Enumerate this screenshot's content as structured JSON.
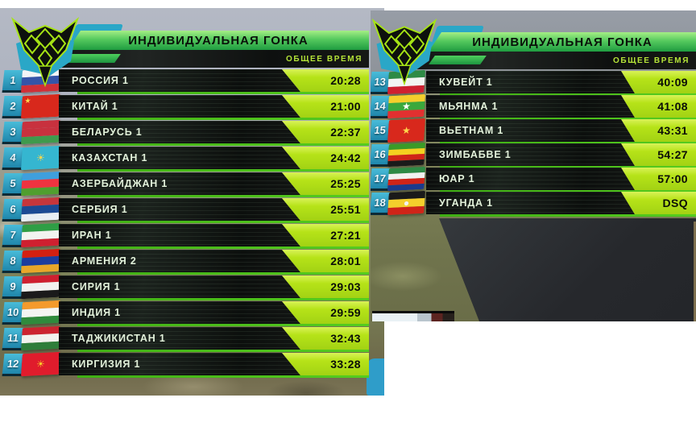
{
  "event": {
    "title": "ИНДИВИДУАЛЬНАЯ ГОНКА",
    "column_header": "ОБЩЕЕ ВРЕМЯ"
  },
  "colors": {
    "header_green_top": "#a5ee85",
    "header_green_bottom": "#1f9c40",
    "time_box_green": "#b6e318",
    "underline_green": "#55cc1f",
    "rank_badge_blue": "#2f9fc4",
    "column_header_text": "#b5e438",
    "logo_teal": "#2aa7c7",
    "logo_outline_green": "#a6e415"
  },
  "panels": [
    {
      "title": "ИНДИВИДУАЛЬНАЯ ГОНКА",
      "column_header": "ОБЩЕЕ ВРЕМЯ",
      "rows": [
        {
          "rank": "1",
          "team": "РОССИЯ 1",
          "time": "20:28",
          "flag": "russia",
          "flag_colors": [
            "#f2f4f6",
            "#3454a8",
            "#cf3038"
          ]
        },
        {
          "rank": "2",
          "team": "КИТАЙ 1",
          "time": "21:00",
          "flag": "china",
          "flag_colors": [
            "#d8281c"
          ],
          "emblem": "★",
          "emblem_color": "#ffd84d",
          "emblem_pos": "tl"
        },
        {
          "rank": "3",
          "team": "БЕЛАРУСЬ 1",
          "time": "22:37",
          "flag": "belarus",
          "flag_colors": [
            "#c8313e",
            "#c8313e",
            "#3f9a4d"
          ]
        },
        {
          "rank": "4",
          "team": "КАЗАХСТАН 1",
          "time": "24:42",
          "flag": "kazakhstan",
          "flag_colors": [
            "#35b6d0"
          ],
          "emblem": "☀",
          "emblem_color": "#ffd84d",
          "emblem_pos": "center"
        },
        {
          "rank": "5",
          "team": "АЗЕРБАЙДЖАН 1",
          "time": "25:25",
          "flag": "azerbaijan",
          "flag_colors": [
            "#3f9fdd",
            "#ef3340",
            "#509e2f"
          ]
        },
        {
          "rank": "6",
          "team": "СЕРБИЯ 1",
          "time": "25:51",
          "flag": "serbia",
          "flag_colors": [
            "#c6363c",
            "#1b4a94",
            "#e8eef4"
          ]
        },
        {
          "rank": "7",
          "team": "ИРАН 1",
          "time": "27:21",
          "flag": "iran",
          "flag_colors": [
            "#2f9e45",
            "#f2f4f0",
            "#cf2030"
          ]
        },
        {
          "rank": "8",
          "team": "АРМЕНИЯ 2",
          "time": "28:01",
          "flag": "armenia",
          "flag_colors": [
            "#d32011",
            "#1c3d9e",
            "#e8a62a"
          ]
        },
        {
          "rank": "9",
          "team": "СИРИЯ 1",
          "time": "29:03",
          "flag": "syria",
          "flag_colors": [
            "#cf2030",
            "#f2f2f0",
            "#1a1a1a"
          ]
        },
        {
          "rank": "10",
          "team": "ИНДИЯ 1",
          "time": "29:59",
          "flag": "india",
          "flag_colors": [
            "#f49a2c",
            "#f4f4f2",
            "#2f8a3c"
          ]
        },
        {
          "rank": "11",
          "team": "ТАДЖИКИСТАН 1",
          "time": "32:43",
          "flag": "tajikistan",
          "flag_colors": [
            "#cc2430",
            "#f2f2ee",
            "#2e7d3a"
          ]
        },
        {
          "rank": "12",
          "team": "КИРГИЗИЯ 1",
          "time": "33:28",
          "flag": "kyrgyzstan",
          "flag_colors": [
            "#e01c2c"
          ],
          "emblem": "☀",
          "emblem_color": "#f8c828",
          "emblem_pos": "center"
        }
      ]
    },
    {
      "title": "ИНДИВИДУАЛЬНАЯ ГОНКА",
      "column_header": "ОБЩЕЕ ВРЕМЯ",
      "rows": [
        {
          "rank": "13",
          "team": "КУВЕЙТ 1",
          "time": "40:09",
          "flag": "kuwait",
          "flag_colors": [
            "#2e8a45",
            "#f2f4f2",
            "#cf2030"
          ]
        },
        {
          "rank": "14",
          "team": "МЬЯНМА 1",
          "time": "41:08",
          "flag": "myanmar",
          "flag_colors": [
            "#f4cf2c",
            "#3aa83c",
            "#e23030"
          ],
          "emblem": "★",
          "emblem_color": "#ffffff",
          "emblem_pos": "center"
        },
        {
          "rank": "15",
          "team": "ВЬЕТНАМ 1",
          "time": "43:31",
          "flag": "vietnam",
          "flag_colors": [
            "#d8281c"
          ],
          "emblem": "★",
          "emblem_color": "#ffd84d",
          "emblem_pos": "center"
        },
        {
          "rank": "16",
          "team": "ЗИМБАБВЕ 1",
          "time": "54:27",
          "flag": "zimbabwe",
          "flag_colors": [
            "#3a9a28",
            "#f4d020",
            "#d02418",
            "#1a1a1a"
          ]
        },
        {
          "rank": "17",
          "team": "ЮАР 1",
          "time": "57:00",
          "flag": "south-africa",
          "flag_colors": [
            "#2e8a45",
            "#f2f2f0",
            "#d02418",
            "#1b3a8c"
          ]
        },
        {
          "rank": "18",
          "team": "УГАНДА 1",
          "time": "DSQ",
          "flag": "uganda",
          "flag_colors": [
            "#1a1a1a",
            "#f4cf2c",
            "#d02418"
          ],
          "emblem": "●",
          "emblem_color": "#f2f2f2",
          "emblem_pos": "center"
        }
      ]
    }
  ]
}
